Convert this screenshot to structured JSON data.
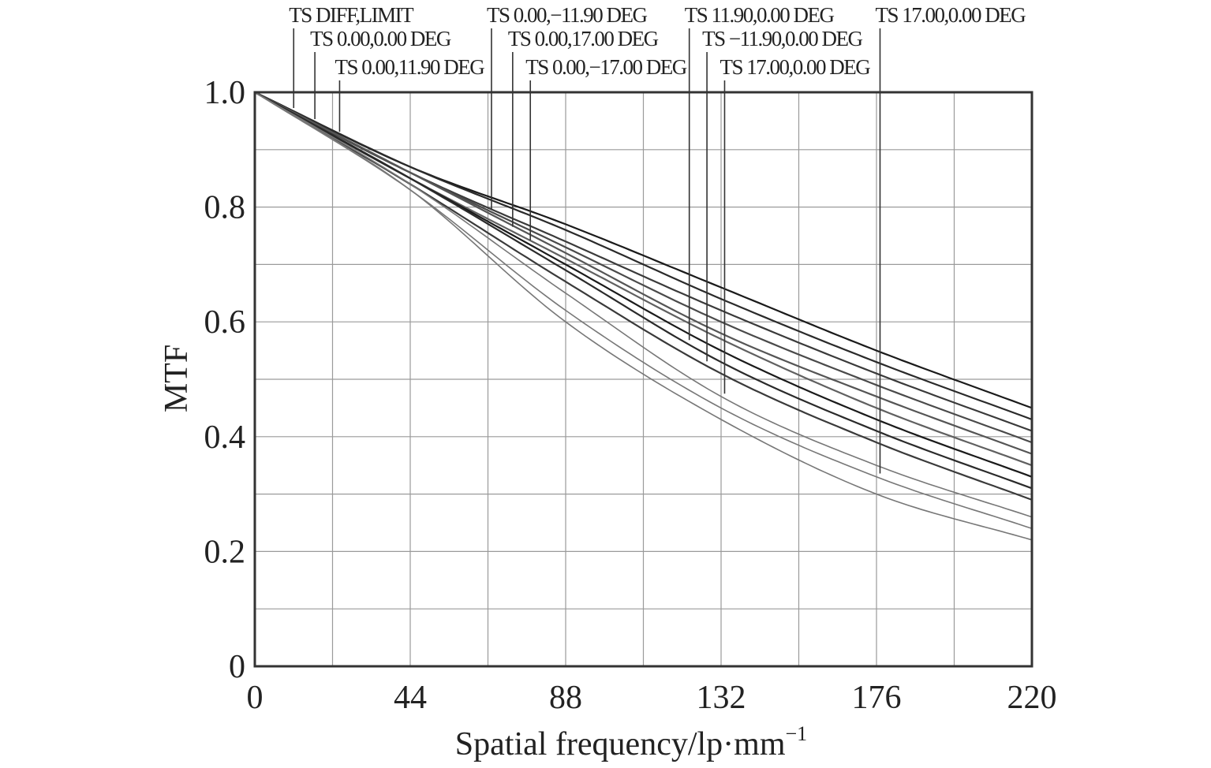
{
  "chart_data": {
    "type": "line",
    "title": "",
    "xlabel": "Spatial frequency/lp·mm",
    "xlabel_superscript": "−1",
    "ylabel": "MTF",
    "xlim": [
      0,
      220
    ],
    "ylim": [
      0,
      1
    ],
    "x_ticks": [
      0,
      44,
      88,
      132,
      176,
      220
    ],
    "x_tick_labels": [
      "0",
      "44",
      "88",
      "132",
      "176",
      "220"
    ],
    "y_ticks": [
      0,
      0.2,
      0.4,
      0.6,
      0.8,
      1.0
    ],
    "y_tick_labels": [
      "0",
      "0.2",
      "0.4",
      "0.6",
      "0.8",
      "1.0"
    ],
    "x_minor_ticks": [
      22,
      66,
      110,
      154,
      198
    ],
    "y_minor_ticks": [
      0.1,
      0.3,
      0.5,
      0.7,
      0.9
    ],
    "grid": true,
    "series_labels": [
      {
        "text": "TS DIFF,LIMIT",
        "x": 11
      },
      {
        "text": "TS 0.00,0.00 DEG",
        "x": 17
      },
      {
        "text": "TS 0.00,11.90 DEG",
        "x": 24
      },
      {
        "text": "TS 0.00,−11.90 DEG",
        "x": 67
      },
      {
        "text": "TS 0.00,17.00 DEG",
        "x": 73
      },
      {
        "text": "TS 0.00,−17.00 DEG",
        "x": 78
      },
      {
        "text": "TS 11.90,0.00 DEG",
        "x": 123
      },
      {
        "text": "TS −11.90,0.00 DEG",
        "x": 128
      },
      {
        "text": "TS 17.00,0.00 DEG",
        "x": 133
      },
      {
        "text": "TS 17.00,0.00 DEG",
        "x": 177
      }
    ],
    "series": [
      {
        "x": [
          0,
          44,
          88,
          132,
          176,
          220
        ],
        "values": [
          1.0,
          0.87,
          0.77,
          0.66,
          0.55,
          0.45
        ]
      },
      {
        "x": [
          0,
          44,
          88,
          132,
          176,
          220
        ],
        "values": [
          1.0,
          0.87,
          0.76,
          0.64,
          0.53,
          0.43
        ]
      },
      {
        "x": [
          0,
          44,
          88,
          132,
          176,
          220
        ],
        "values": [
          1.0,
          0.86,
          0.74,
          0.62,
          0.51,
          0.41
        ]
      },
      {
        "x": [
          0,
          44,
          88,
          132,
          176,
          220
        ],
        "values": [
          1.0,
          0.86,
          0.73,
          0.6,
          0.49,
          0.39
        ]
      },
      {
        "x": [
          0,
          44,
          88,
          132,
          176,
          220
        ],
        "values": [
          1.0,
          0.86,
          0.72,
          0.58,
          0.47,
          0.37
        ]
      },
      {
        "x": [
          0,
          44,
          88,
          132,
          176,
          220
        ],
        "values": [
          1.0,
          0.85,
          0.71,
          0.57,
          0.45,
          0.35
        ]
      },
      {
        "x": [
          0,
          44,
          88,
          132,
          176,
          220
        ],
        "values": [
          1.0,
          0.85,
          0.7,
          0.55,
          0.43,
          0.33
        ]
      },
      {
        "x": [
          0,
          44,
          88,
          132,
          176,
          220
        ],
        "values": [
          1.0,
          0.85,
          0.69,
          0.53,
          0.41,
          0.31
        ]
      },
      {
        "x": [
          0,
          44,
          88,
          132,
          176,
          220
        ],
        "values": [
          1.0,
          0.84,
          0.67,
          0.51,
          0.39,
          0.29
        ]
      },
      {
        "x": [
          0,
          44,
          88,
          132,
          176,
          220
        ],
        "values": [
          1.0,
          0.84,
          0.65,
          0.47,
          0.35,
          0.26
        ]
      },
      {
        "x": [
          0,
          44,
          88,
          132,
          176,
          220
        ],
        "values": [
          1.0,
          0.83,
          0.62,
          0.45,
          0.33,
          0.24
        ]
      },
      {
        "x": [
          0,
          44,
          88,
          132,
          176,
          220
        ],
        "values": [
          1.0,
          0.83,
          0.6,
          0.43,
          0.3,
          0.22
        ]
      }
    ]
  }
}
